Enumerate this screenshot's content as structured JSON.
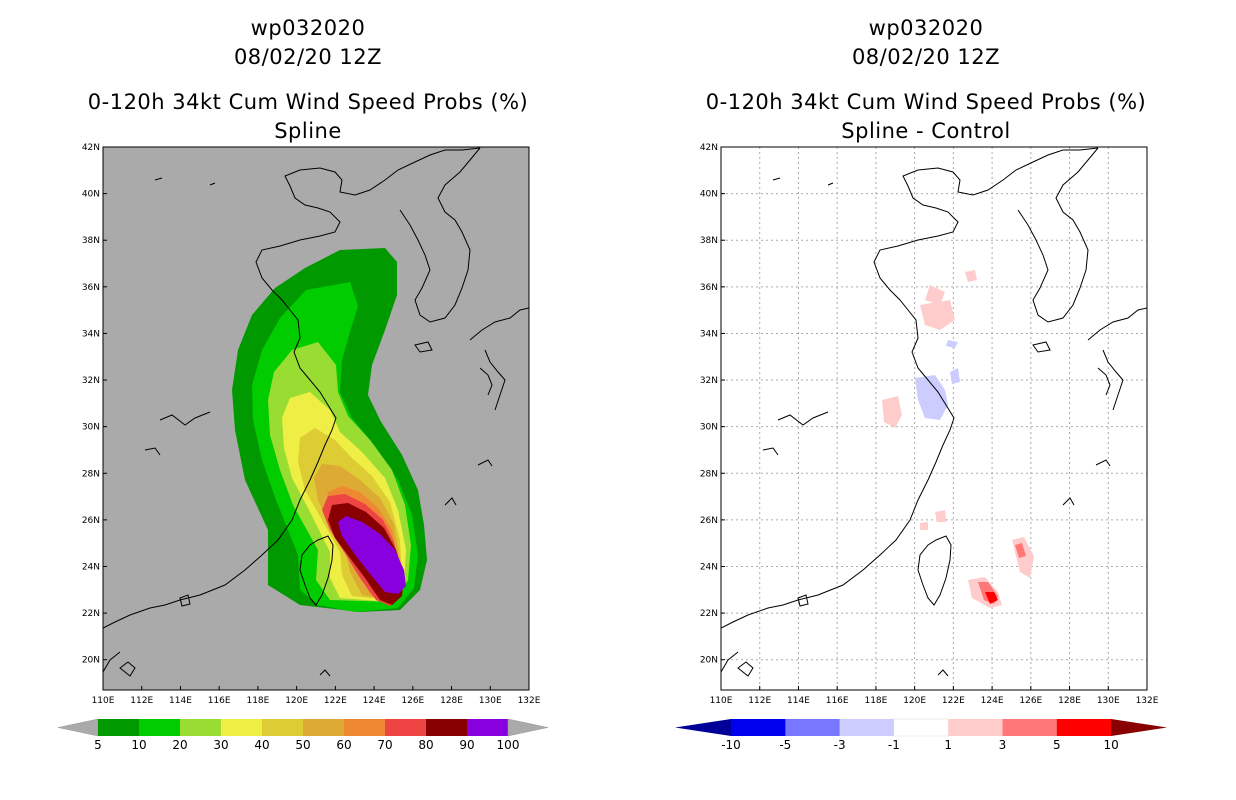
{
  "left_panel": {
    "title_line1": "wp032020",
    "title_line2": "08/02/20 12Z",
    "title_line3": "0-120h 34kt Cum Wind Speed Probs (%)",
    "title_line4": "Spline",
    "colorbar": {
      "labels": [
        "5",
        "10",
        "20",
        "30",
        "40",
        "50",
        "60",
        "70",
        "80",
        "90",
        "100"
      ],
      "colors": [
        "#009900",
        "#00cc00",
        "#99dd33",
        "#eeee44",
        "#ddcc33",
        "#ddaa33",
        "#ee8833",
        "#ee4444",
        "#880000",
        "#8800dd"
      ],
      "end_color": "#aaaaaa"
    }
  },
  "right_panel": {
    "title_line1": "wp032020",
    "title_line2": "08/02/20 12Z",
    "title_line3": "0-120h 34kt Cum Wind Speed Probs (%)",
    "title_line4": "Spline - Control",
    "colorbar": {
      "labels": [
        "-10",
        "-5",
        "-3",
        "-1",
        "1",
        "3",
        "5",
        "10"
      ],
      "colors": [
        "#0000ee",
        "#7777ff",
        "#ccccff",
        "#ffffff",
        "#ffcccc",
        "#ff7777",
        "#ff0000"
      ],
      "end_left_color": "#000099",
      "end_right_color": "#880000"
    }
  },
  "map_axes": {
    "lat_labels": [
      "20N",
      "22N",
      "24N",
      "26N",
      "28N",
      "30N",
      "32N",
      "34N",
      "36N",
      "38N",
      "40N",
      "42N"
    ],
    "lon_labels": [
      "110E",
      "112E",
      "114E",
      "116E",
      "118E",
      "120E",
      "122E",
      "124E",
      "126E",
      "128E",
      "130E",
      "132E"
    ],
    "lat_range": [
      18.7,
      42
    ],
    "lon_range": [
      110,
      132
    ]
  },
  "colors": {
    "left_background": "#aaaaaa",
    "right_background": "#ffffff",
    "coastline": "#000000",
    "grid": "#aaaaaa"
  }
}
